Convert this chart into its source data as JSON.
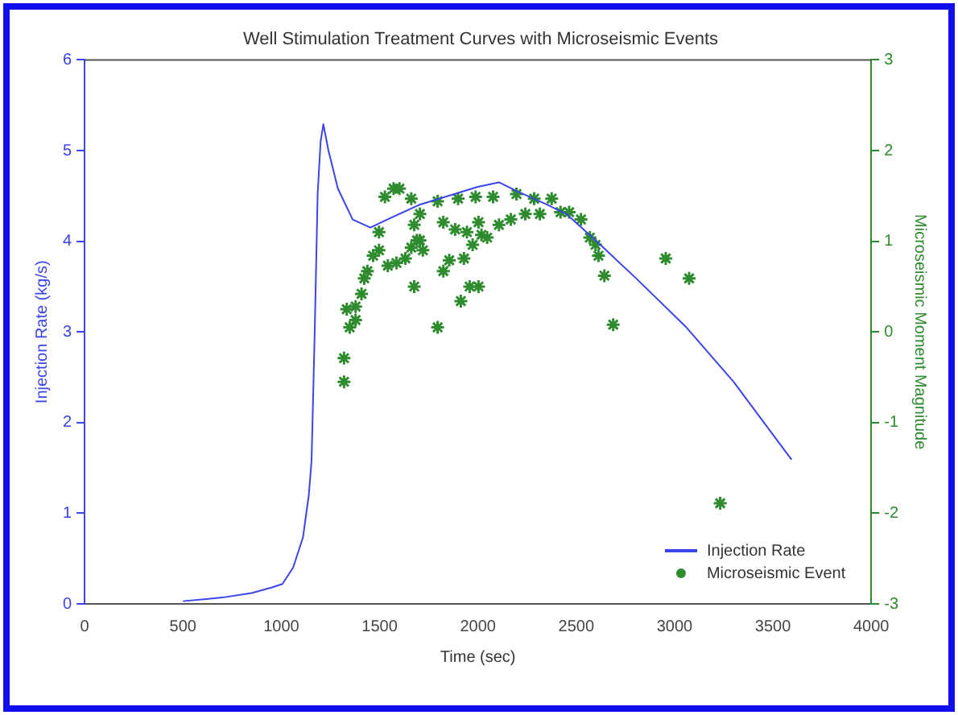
{
  "chart_data": {
    "type": "line",
    "title": "Well Stimulation Treatment Curves with Microseismic Events",
    "xlabel": "Time (sec)",
    "ylabel": "Injection Rate (kg/s)",
    "y2label": "Microseismic Moment Magnitude",
    "xlim": [
      0,
      4000
    ],
    "xticks": [
      0,
      500,
      1000,
      1500,
      2000,
      2500,
      3000,
      3500,
      4000
    ],
    "ylim": [
      0,
      6
    ],
    "yticks": [
      0,
      1,
      2,
      3,
      4,
      5,
      6
    ],
    "y2lim": [
      -3,
      3
    ],
    "y2ticks": [
      -3,
      -2,
      -1,
      0,
      1,
      2,
      3
    ],
    "grid": false,
    "legend": "bottom right",
    "series": [
      {
        "name": "Injection Rate",
        "type": "line",
        "color": "#3a44e8",
        "marker": "none",
        "line_style": "solid",
        "x": [
          500,
          700,
          850,
          950,
          1006,
          1060,
          1110,
          1140,
          1154,
          1170,
          1185,
          1200,
          1214,
          1240,
          1288,
          1363,
          1453,
          1550,
          1700,
          1850,
          2000,
          2107,
          2200,
          2345,
          2450,
          2613,
          2800,
          3060,
          3300,
          3595
        ],
        "values": [
          0.03,
          0.07,
          0.12,
          0.18,
          0.22,
          0.4,
          0.73,
          1.2,
          1.58,
          3.0,
          4.52,
          5.1,
          5.29,
          5.0,
          4.58,
          4.24,
          4.15,
          4.25,
          4.4,
          4.5,
          4.6,
          4.65,
          4.55,
          4.41,
          4.3,
          3.98,
          3.6,
          3.05,
          2.45,
          1.59
        ]
      },
      {
        "name": "Microseismic Event",
        "type": "scatter",
        "axis": "y2",
        "color": "#2e8b2e",
        "marker": "cross",
        "x": [
          1319,
          1319,
          1333,
          1348,
          1378,
          1378,
          1408,
          1422,
          1438,
          1467,
          1497,
          1497,
          1527,
          1571,
          1601,
          1542,
          1586,
          1631,
          1661,
          1676,
          1676,
          1690,
          1720,
          1795,
          1913,
          1958,
          2003,
          1824,
          1854,
          1929,
          1973,
          1705,
          1824,
          1884,
          1944,
          2018,
          2047,
          2003,
          2107,
          2167,
          2241,
          2315,
          2420,
          2464,
          2524,
          2569,
          2598,
          2613,
          2643,
          2688,
          2955,
          3074,
          1705,
          1795,
          1899,
          1988,
          2077,
          2196,
          2286,
          2375,
          1661,
          3232
        ],
        "values": [
          -0.55,
          -0.29,
          0.25,
          0.05,
          0.28,
          0.13,
          0.42,
          0.59,
          0.67,
          0.84,
          0.9,
          1.1,
          1.49,
          1.58,
          1.58,
          0.73,
          0.76,
          0.81,
          0.93,
          0.5,
          1.18,
          1.01,
          0.9,
          0.05,
          0.34,
          0.5,
          0.5,
          0.67,
          0.79,
          0.81,
          0.96,
          1.01,
          1.21,
          1.13,
          1.1,
          1.07,
          1.04,
          1.21,
          1.18,
          1.24,
          1.3,
          1.3,
          1.32,
          1.32,
          1.24,
          1.04,
          0.96,
          0.84,
          0.62,
          0.08,
          0.81,
          0.59,
          1.3,
          1.44,
          1.47,
          1.49,
          1.49,
          1.52,
          1.47,
          1.47,
          1.47,
          -1.89
        ]
      }
    ]
  }
}
